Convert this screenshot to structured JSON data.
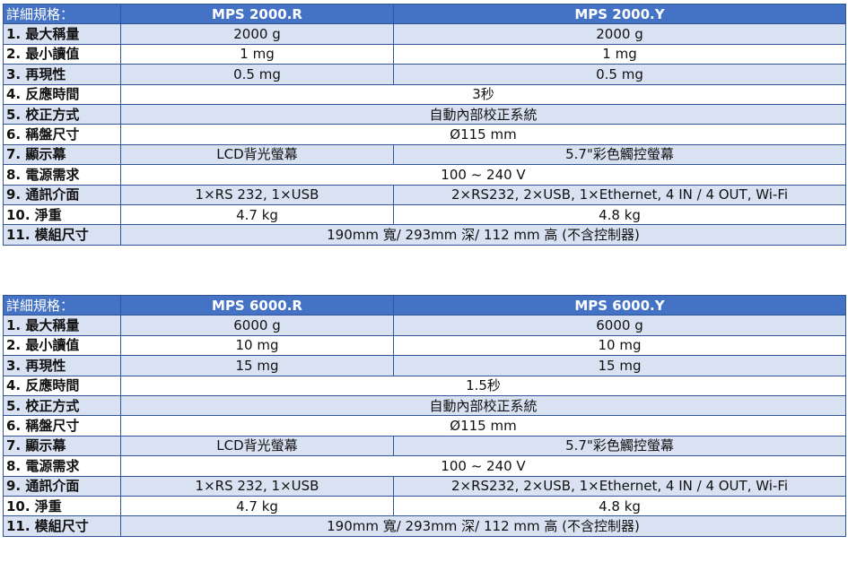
{
  "colors": {
    "header": "#4472C4",
    "alt_row": "#D9E2F3",
    "border": "#2F5597"
  },
  "tables": [
    {
      "header": {
        "label": "詳細規格：",
        "models": [
          "MPS 2000.R",
          "MPS 2000.Y"
        ]
      },
      "rows": [
        {
          "label": "1. 最大稱量",
          "values": [
            "2000 g",
            "2000 g"
          ]
        },
        {
          "label": "2. 最小讀值",
          "values": [
            "1 mg",
            "1 mg"
          ]
        },
        {
          "label": "3. 再現性",
          "values": [
            "0.5 mg",
            "0.5 mg"
          ]
        },
        {
          "label": "4. 反應時間",
          "values": [
            "3秒"
          ]
        },
        {
          "label": "5. 校正方式",
          "values": [
            "自動內部校正系統"
          ]
        },
        {
          "label": "6. 稱盤尺寸",
          "values": [
            "Ø115 mm"
          ]
        },
        {
          "label": "7. 顯示幕",
          "values": [
            "LCD背光螢幕",
            "5.7\"彩色觸控螢幕"
          ]
        },
        {
          "label": "8. 電源需求",
          "values": [
            "100 ~ 240 V"
          ]
        },
        {
          "label": "9. 通訊介面",
          "values": [
            "1×RS 232, 1×USB",
            "2×RS232, 2×USB, 1×Ethernet, 4 IN / 4 OUT, Wi-Fi"
          ]
        },
        {
          "label": "10. 淨重",
          "values": [
            "4.7 kg",
            "4.8 kg"
          ]
        },
        {
          "label": "11. 模組尺寸",
          "values": [
            "190mm 寬/ 293mm 深/ 112 mm 高 (不含控制器)"
          ]
        }
      ]
    },
    {
      "header": {
        "label": "詳細規格：",
        "models": [
          "MPS 6000.R",
          "MPS 6000.Y"
        ]
      },
      "rows": [
        {
          "label": "1. 最大稱量",
          "values": [
            "6000 g",
            "6000 g"
          ]
        },
        {
          "label": "2. 最小讀值",
          "values": [
            "10 mg",
            "10 mg"
          ]
        },
        {
          "label": "3. 再現性",
          "values": [
            "15 mg",
            "15 mg"
          ]
        },
        {
          "label": "4. 反應時間",
          "values": [
            "1.5秒"
          ]
        },
        {
          "label": "5. 校正方式",
          "values": [
            "自動內部校正系統"
          ]
        },
        {
          "label": "6. 稱盤尺寸",
          "values": [
            "Ø115 mm"
          ]
        },
        {
          "label": "7. 顯示幕",
          "values": [
            "LCD背光螢幕",
            "5.7\"彩色觸控螢幕"
          ]
        },
        {
          "label": "8. 電源需求",
          "values": [
            "100 ~ 240 V"
          ]
        },
        {
          "label": "9. 通訊介面",
          "values": [
            "1×RS 232, 1×USB",
            "2×RS232, 2×USB, 1×Ethernet, 4 IN / 4 OUT, Wi-Fi"
          ]
        },
        {
          "label": "10. 淨重",
          "values": [
            "4.7 kg",
            "4.8 kg"
          ]
        },
        {
          "label": "11. 模組尺寸",
          "values": [
            "190mm 寬/ 293mm 深/ 112 mm 高 (不含控制器)"
          ]
        }
      ]
    }
  ]
}
